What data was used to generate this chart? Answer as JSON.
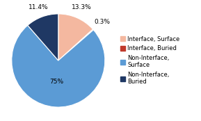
{
  "values": [
    13.3,
    0.3,
    75.0,
    11.4
  ],
  "colors": [
    "#f4b8a0",
    "#c0392b",
    "#5b9bd5",
    "#1f3864"
  ],
  "pct_labels": [
    "13.3%",
    "0.3%",
    "75%",
    "11.4%"
  ],
  "legend_labels": [
    "Interface, Surface",
    "Interface, Buried",
    "Non-Interface,\nSurface",
    "Non-Interface,\nBuried"
  ],
  "background_color": "#ffffff",
  "startangle": 90,
  "label_font_size": 6.5,
  "legend_font_size": 6.0
}
